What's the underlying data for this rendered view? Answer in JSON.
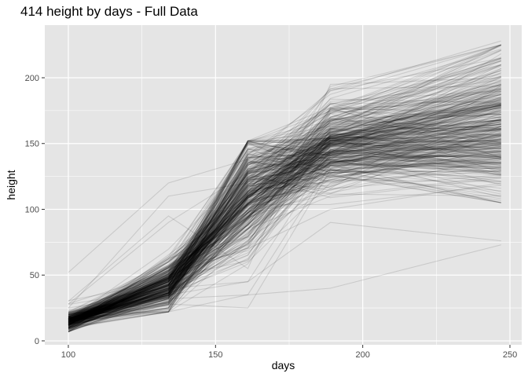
{
  "chart_data": {
    "type": "line",
    "title": "414 height by days - Full Data",
    "xlabel": "days",
    "ylabel": "height",
    "x": [
      100,
      134,
      161,
      189,
      247
    ],
    "xlim": [
      92,
      254
    ],
    "ylim": [
      -3,
      240
    ],
    "xticks": [
      100,
      150,
      200,
      250
    ],
    "yticks": [
      0,
      50,
      100,
      150,
      200
    ],
    "grid": true,
    "legend": "none",
    "n_series": 414,
    "line_color": "#000000",
    "line_opacity": 0.12,
    "panel_background": "#e5e5e5",
    "grid_color": "#ffffff",
    "example_series": [
      {
        "values": [
          13,
          38,
          110,
          147,
          175
        ]
      },
      {
        "values": [
          52,
          120,
          138,
          190,
          228
        ]
      },
      {
        "values": [
          12,
          32,
          35,
          40,
          73
        ]
      },
      {
        "values": [
          20,
          37,
          152,
          154,
          172
        ]
      },
      {
        "values": [
          25,
          110,
          120,
          173,
          215
        ]
      },
      {
        "values": [
          30,
          95,
          55,
          195,
          200
        ]
      },
      {
        "values": [
          10,
          28,
          25,
          130,
          108
        ]
      },
      {
        "values": [
          15,
          40,
          125,
          153,
          165
        ]
      },
      {
        "values": [
          14,
          42,
          80,
          148,
          150
        ]
      },
      {
        "values": [
          16,
          43,
          100,
          160,
          195
        ]
      },
      {
        "values": [
          12,
          36,
          60,
          120,
          132
        ]
      },
      {
        "values": [
          18,
          48,
          135,
          170,
          210
        ]
      },
      {
        "values": [
          9,
          30,
          70,
          100,
          120
        ]
      },
      {
        "values": [
          22,
          60,
          145,
          175,
          185
        ]
      },
      {
        "values": [
          14,
          44,
          130,
          150,
          170
        ]
      },
      {
        "values": [
          11,
          33,
          85,
          110,
          125
        ]
      },
      {
        "values": [
          17,
          45,
          118,
          182,
          190
        ]
      },
      {
        "values": [
          13,
          39,
          95,
          135,
          160
        ]
      },
      {
        "values": [
          28,
          90,
          128,
          170,
          213
        ]
      },
      {
        "values": [
          12,
          35,
          45,
          90,
          76
        ]
      }
    ]
  }
}
